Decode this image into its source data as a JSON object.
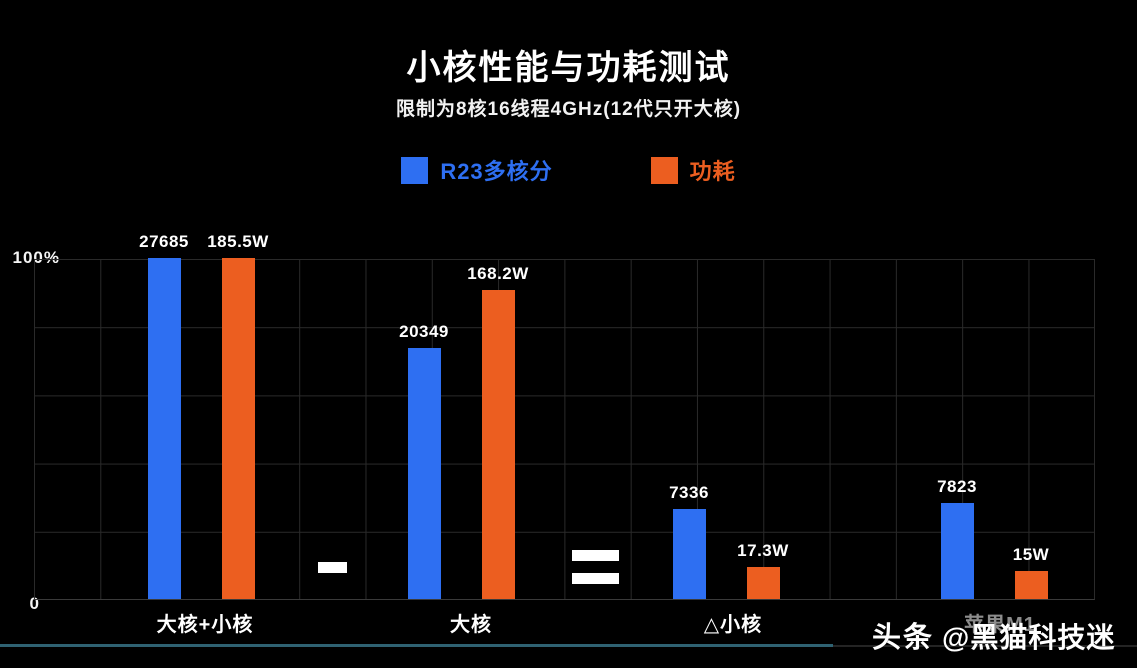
{
  "title": "小核性能与功耗测试",
  "subtitle": "限制为8核16线程4GHz(12代只开大核)",
  "legend": {
    "score": {
      "label": "R23多核分",
      "color": "#2e6ff2"
    },
    "power": {
      "label": "功耗",
      "color": "#ec5e20"
    }
  },
  "y_axis": {
    "top_label": "100%",
    "bottom_label": "0"
  },
  "watermark": {
    "prefix": "头条",
    "handle": "@黑猫科技迷"
  },
  "chart_data": {
    "type": "bar",
    "title": "小核性能与功耗测试",
    "subtitle": "限制为8核16线程4GHz(12代只开大核)",
    "categories": [
      "大核+小核",
      "大核",
      "△小核",
      "苹果M1"
    ],
    "series": [
      {
        "name": "R23多核分",
        "color": "#2e6ff2",
        "values": [
          27685,
          20349,
          7336,
          7823
        ],
        "labels": [
          "27685",
          "20349",
          "7336",
          "7823"
        ],
        "axis_max": 27685
      },
      {
        "name": "功耗",
        "color": "#ec5e20",
        "values": [
          185.5,
          168.2,
          17.3,
          15
        ],
        "labels": [
          "185.5W",
          "168.2W",
          "17.3W",
          "15W"
        ],
        "axis_max": 185.5
      }
    ],
    "ylabel": "",
    "xlabel": "",
    "ylim_labels": [
      "0",
      "100%"
    ],
    "grid": true,
    "legend_position": "top",
    "annotations": [
      {
        "symbol": "−",
        "meaning": "minus",
        "between": [
          "大核+小核",
          "大核"
        ]
      },
      {
        "symbol": "=",
        "meaning": "equals",
        "between": [
          "大核",
          "△小核"
        ]
      }
    ]
  }
}
